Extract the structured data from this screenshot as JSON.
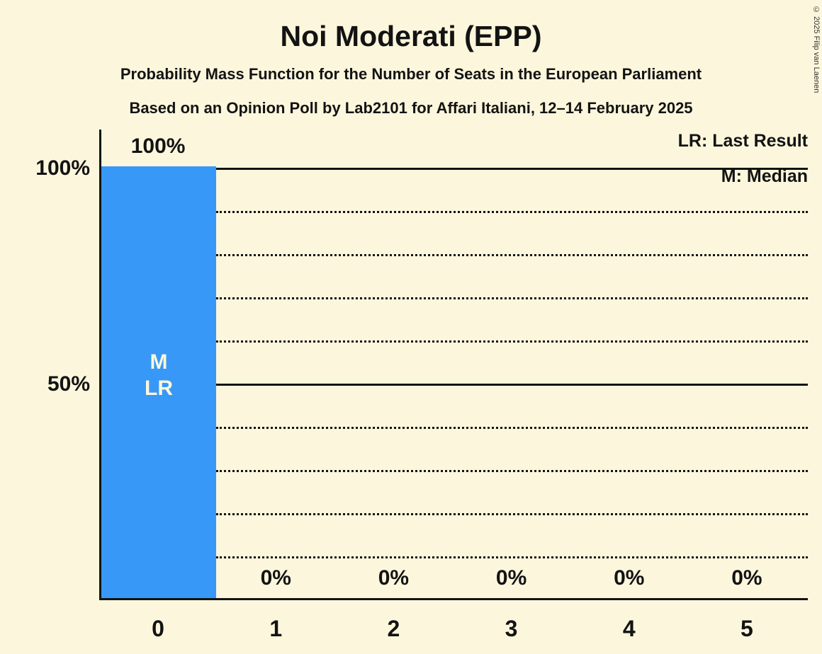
{
  "title": "Noi Moderati (EPP)",
  "subtitle1": "Probability Mass Function for the Number of Seats in the European Parliament",
  "subtitle2": "Based on an Opinion Poll by Lab2101 for Affari Italiani, 12–14 February 2025",
  "copyright": "© 2025 Filip van Laenen",
  "legend": {
    "lr": "LR: Last Result",
    "m": "M: Median"
  },
  "colors": {
    "background": "#FCF7DC",
    "bar": "#3898F8",
    "bar_label_text": "#FCF7DC",
    "text": "#131313"
  },
  "chart_data": {
    "type": "bar",
    "title": "Noi Moderati (EPP)",
    "categories": [
      "0",
      "1",
      "2",
      "3",
      "4",
      "5"
    ],
    "values": [
      100,
      0,
      0,
      0,
      0,
      0
    ],
    "value_labels": [
      "100%",
      "0%",
      "0%",
      "0%",
      "0%",
      "0%"
    ],
    "xlabel": "",
    "ylabel": "",
    "ylim": [
      0,
      100
    ],
    "yticks": [
      {
        "value": 100,
        "label": "100%"
      },
      {
        "value": 50,
        "label": "50%"
      }
    ],
    "gridlines": {
      "dotted_percent": [
        10,
        20,
        30,
        40,
        60,
        70,
        80,
        90
      ],
      "solid_percent": [
        50,
        100
      ]
    },
    "legend_position": "top-right",
    "annotations": {
      "median_category": "0",
      "last_result_category": "0",
      "bar_annotation_lines": [
        "M",
        "LR"
      ]
    }
  }
}
